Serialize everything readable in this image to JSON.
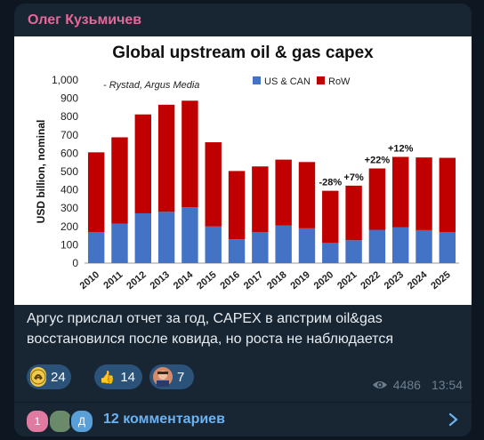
{
  "post": {
    "author": "Олег Кузьмичев",
    "caption": "Аргус прислал отчет за год, CAPEX в апстрим oil&gas восстановился после ковида, но роста не наблюдается",
    "views": "4486",
    "time": "13:54"
  },
  "reactions": [
    {
      "icon": "coin-logo-icon",
      "count": "24"
    },
    {
      "icon": "thumbs-up-icon",
      "count": "14"
    },
    {
      "icon": "person-avatar-icon",
      "count": "7"
    }
  ],
  "comments": {
    "label": "12 комментариев",
    "avatars": [
      {
        "initial": "1",
        "color": "#e07aa0"
      },
      {
        "initial": "",
        "color": "#6a8a6a"
      },
      {
        "initial": "Д",
        "color": "#5aa0d8"
      }
    ]
  },
  "colors": {
    "us_can": "#4472c4",
    "row": "#c00000",
    "accent": "#e5689a",
    "link": "#6ab3f3"
  },
  "chart_data": {
    "type": "bar",
    "stacked": true,
    "title": "Global upstream oil & gas capex",
    "source_note": "- Rystad, Argus Media",
    "ylabel": "USD billion, nominal",
    "xlabel": "",
    "ylim": [
      0,
      1000
    ],
    "yticks": [
      "0",
      "100",
      "200",
      "300",
      "400",
      "500",
      "600",
      "700",
      "800",
      "900",
      "1,000"
    ],
    "categories": [
      "2010",
      "2011",
      "2012",
      "2013",
      "2014",
      "2015",
      "2016",
      "2017",
      "2018",
      "2019",
      "2020",
      "2021",
      "2022",
      "2023",
      "2024",
      "2025"
    ],
    "series": [
      {
        "name": "US & CAN",
        "values": [
          170,
          215,
          272,
          280,
          305,
          200,
          130,
          170,
          205,
          190,
          110,
          125,
          182,
          195,
          180,
          170
        ]
      },
      {
        "name": "RoW",
        "values": [
          435,
          472,
          540,
          585,
          582,
          460,
          373,
          358,
          360,
          362,
          285,
          298,
          335,
          385,
          397,
          405
        ]
      }
    ],
    "annotations": [
      {
        "category": "2020",
        "text": "-28%"
      },
      {
        "category": "2021",
        "text": "+7%"
      },
      {
        "category": "2022",
        "text": "+22%"
      },
      {
        "category": "2023",
        "text": "+12%"
      }
    ],
    "legend": "top-right",
    "grid": false
  }
}
